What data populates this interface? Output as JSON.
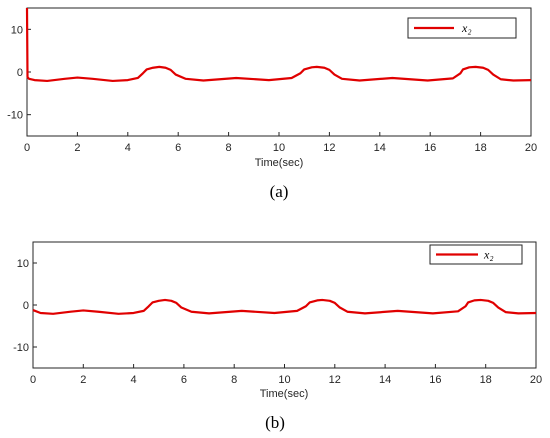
{
  "chart_data": [
    {
      "type": "line",
      "caption": "(a)",
      "xlabel": "Time(sec)",
      "ylabel": "",
      "xlim": [
        0,
        20
      ],
      "ylim": [
        -15,
        15
      ],
      "x_ticks": [
        0,
        2,
        4,
        6,
        8,
        10,
        12,
        14,
        16,
        18,
        20
      ],
      "y_ticks": [
        10,
        0,
        -10
      ],
      "grid": false,
      "legend_position": "top-right",
      "series": [
        {
          "name": "x₂",
          "color": "#e00000",
          "x": [
            0,
            0.02,
            0.08,
            0.3,
            0.8,
            1.5,
            2.0,
            2.6,
            3.4,
            4.0,
            4.4,
            4.6,
            4.75,
            5.0,
            5.25,
            5.5,
            5.7,
            5.9,
            6.3,
            7.0,
            8.3,
            9.6,
            10.5,
            10.85,
            11.0,
            11.3,
            11.5,
            11.8,
            12.0,
            12.2,
            12.5,
            13.2,
            14.5,
            15.9,
            16.9,
            17.2,
            17.3,
            17.55,
            17.8,
            18.1,
            18.3,
            18.5,
            18.8,
            19.3,
            20.0
          ],
          "y": [
            15,
            -1.2,
            -1.6,
            -1.9,
            -2.1,
            -1.6,
            -1.3,
            -1.6,
            -2.1,
            -1.9,
            -1.4,
            -0.3,
            0.6,
            1.0,
            1.2,
            1.0,
            0.5,
            -0.6,
            -1.6,
            -2.0,
            -1.4,
            -1.9,
            -1.4,
            -0.3,
            0.6,
            1.1,
            1.2,
            1.0,
            0.5,
            -0.6,
            -1.6,
            -2.0,
            -1.4,
            -2.0,
            -1.5,
            -0.3,
            0.6,
            1.1,
            1.2,
            1.0,
            0.5,
            -0.6,
            -1.7,
            -2.0,
            -1.9
          ]
        }
      ]
    },
    {
      "type": "line",
      "caption": "(b)",
      "xlabel": "Time(sec)",
      "ylabel": "",
      "xlim": [
        0,
        20
      ],
      "ylim": [
        -15,
        15
      ],
      "x_ticks": [
        0,
        2,
        4,
        6,
        8,
        10,
        12,
        14,
        16,
        18,
        20
      ],
      "y_ticks": [
        10,
        0,
        -10
      ],
      "grid": false,
      "legend_position": "top-right",
      "series": [
        {
          "name": "x₂",
          "color": "#e00000",
          "x": [
            0,
            0.3,
            0.8,
            1.5,
            2.0,
            2.6,
            3.4,
            4.0,
            4.4,
            4.6,
            4.75,
            5.0,
            5.25,
            5.5,
            5.7,
            5.9,
            6.3,
            7.0,
            8.3,
            9.6,
            10.5,
            10.85,
            11.0,
            11.3,
            11.5,
            11.8,
            12.0,
            12.2,
            12.5,
            13.2,
            14.5,
            15.9,
            16.9,
            17.2,
            17.3,
            17.55,
            17.8,
            18.1,
            18.3,
            18.5,
            18.8,
            19.3,
            20.0
          ],
          "y": [
            -1.2,
            -1.9,
            -2.1,
            -1.6,
            -1.3,
            -1.6,
            -2.1,
            -1.9,
            -1.4,
            -0.3,
            0.6,
            1.0,
            1.2,
            1.0,
            0.5,
            -0.6,
            -1.6,
            -2.0,
            -1.4,
            -1.9,
            -1.4,
            -0.3,
            0.6,
            1.1,
            1.2,
            1.0,
            0.5,
            -0.6,
            -1.6,
            -2.0,
            -1.4,
            -2.0,
            -1.5,
            -0.3,
            0.6,
            1.1,
            1.2,
            1.0,
            0.5,
            -0.6,
            -1.7,
            -2.0,
            -1.9
          ]
        }
      ]
    }
  ]
}
